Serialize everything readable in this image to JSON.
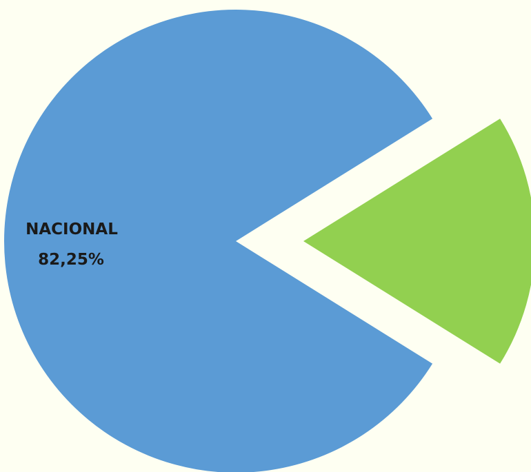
{
  "chart_data": {
    "type": "pie",
    "title": "",
    "slices": [
      {
        "name": "NACIONAL",
        "value": 82.25,
        "value_label": "82,25%",
        "color": "#5B9BD5",
        "exploded": false,
        "label_visible": true
      },
      {
        "name": "",
        "value": 17.75,
        "value_label": "",
        "color": "#92D050",
        "exploded": true,
        "label_visible": false
      }
    ],
    "legend": "none"
  },
  "colors": {
    "background": "#FEFFF2"
  }
}
